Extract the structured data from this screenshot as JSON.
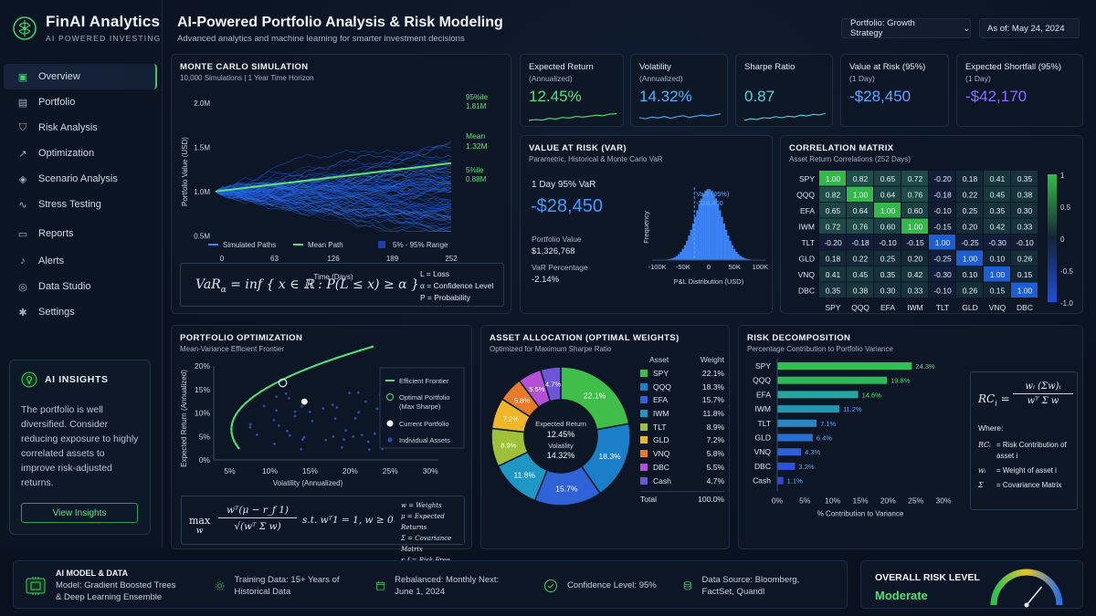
{
  "brand": {
    "title": "FinAI Analytics",
    "subtitle": "AI POWERED INVESTING"
  },
  "nav": [
    {
      "label": "Overview",
      "icon": "dashboard-icon",
      "active": true
    },
    {
      "label": "Portfolio",
      "icon": "briefcase-icon"
    },
    {
      "label": "Risk Analysis",
      "icon": "shield-icon"
    },
    {
      "label": "Optimization",
      "icon": "trend-icon"
    },
    {
      "label": "Scenario Analysis",
      "icon": "layers-icon"
    },
    {
      "label": "Stress Testing",
      "icon": "pulse-icon"
    },
    {
      "label": "Reports",
      "icon": "document-icon"
    },
    {
      "label": "Alerts",
      "icon": "bell-icon"
    },
    {
      "label": "Data Studio",
      "icon": "database-icon"
    },
    {
      "label": "Settings",
      "icon": "gear-icon"
    }
  ],
  "insights": {
    "title": "AI INSIGHTS",
    "text": "The portfolio is well diversified. Consider reducing exposure to highly correlated assets to improve risk-adjusted returns.",
    "button": "View Insights"
  },
  "header": {
    "title": "AI-Powered Portfolio Analysis & Risk Modeling",
    "subtitle": "Advanced analytics and machine learning for smarter investment decisions",
    "portfolio": "Portfolio: Growth Strategy",
    "asof": "As of: May 24, 2024"
  },
  "monte": {
    "title": "MONTE CARLO SIMULATION",
    "subtitle": "10,000 Simulations  |  1 Year Time Horizon",
    "ylabel": "Portfolio Value (USD)",
    "xlabel": "Time (Days)",
    "yticks": [
      "2.0M",
      "1.5M",
      "1.0M",
      "0.5M"
    ],
    "xticks": [
      "0",
      "63",
      "126",
      "189",
      "252"
    ],
    "p95_label": "95%ile",
    "p95_value": "1.81M",
    "mean_label": "Mean",
    "mean_value": "1.32M",
    "p5_label": "5%ile",
    "p5_value": "0.88M",
    "legend": [
      "Simulated Paths",
      "Mean Path",
      "5% - 95% Range"
    ],
    "formula": {
      "lhs": "VaR",
      "body": "= inf { x ∈ ℝ : P(L ≤ x) ≥ α }",
      "notes": [
        "L = Loss",
        "α = Confidence Level",
        "P = Probability"
      ]
    }
  },
  "kpis": [
    {
      "label": "Expected Return",
      "sub": "(Annualized)",
      "value": "12.45%",
      "color": "#4ee07a",
      "spark": [
        0.3,
        0.35,
        0.32,
        0.45,
        0.4,
        0.52,
        0.48,
        0.6,
        0.55,
        0.62,
        0.7,
        0.66,
        0.78,
        0.82
      ]
    },
    {
      "label": "Volatility",
      "sub": "(Annualized)",
      "value": "14.32%",
      "color": "#4db3ff",
      "spark": [
        0.5,
        0.42,
        0.55,
        0.48,
        0.6,
        0.45,
        0.58,
        0.66,
        0.52,
        0.62,
        0.7,
        0.64,
        0.72,
        0.8
      ]
    },
    {
      "label": "Sharpe Ratio",
      "sub": "",
      "value": "0.87",
      "color": "#4fd3e0",
      "spark": [
        0.3,
        0.42,
        0.36,
        0.5,
        0.46,
        0.58,
        0.5,
        0.62,
        0.56,
        0.7,
        0.64,
        0.76,
        0.72,
        0.84
      ]
    },
    {
      "label": "Value at Risk (95%)",
      "sub": "(1 Day)",
      "value": "-$28,450",
      "color": "#5aa9ff",
      "spark": []
    },
    {
      "label": "Expected Shortfall (95%)",
      "sub": "(1 Day)",
      "value": "-$42,170",
      "color": "#8b6cff",
      "spark": []
    }
  ],
  "var": {
    "title": "VALUE AT RISK (VAR)",
    "subtitle": "Parametric, Historical & Monte Carlo VaR",
    "label": "1 Day 95% VaR",
    "value": "-$28,450",
    "pv_label": "Portfolio Value",
    "pv": "$1,326,768",
    "pct_label": "VaR Percentage",
    "pct": "-2.14%",
    "marker": "VaR (95%)",
    "marker_value": "-$28,450",
    "ylabel": "Frequency",
    "xlabel": "P&L Distribution (USD)",
    "xticks": [
      "-100K",
      "-50K",
      "0",
      "50K",
      "100K"
    ]
  },
  "corr": {
    "title": "CORRELATION MATRIX",
    "subtitle": "Asset Return Correlations (252 Days)",
    "assets": [
      "SPY",
      "QQQ",
      "EFA",
      "IWM",
      "TLT",
      "GLD",
      "VNQ",
      "DBC"
    ],
    "matrix": [
      [
        1.0,
        0.82,
        0.65,
        0.72,
        -0.2,
        0.18,
        0.41,
        0.35
      ],
      [
        0.82,
        1.0,
        0.64,
        0.76,
        -0.18,
        0.22,
        0.45,
        0.38
      ],
      [
        0.65,
        0.64,
        1.0,
        0.6,
        -0.1,
        0.25,
        0.35,
        0.3
      ],
      [
        0.72,
        0.76,
        0.6,
        1.0,
        -0.15,
        0.2,
        0.42,
        0.33
      ],
      [
        -0.2,
        -0.18,
        -0.1,
        -0.15,
        1.0,
        -0.25,
        -0.3,
        -0.1
      ],
      [
        0.18,
        0.22,
        0.25,
        0.2,
        -0.25,
        1.0,
        0.1,
        0.26
      ],
      [
        0.41,
        0.45,
        0.35,
        0.42,
        -0.3,
        0.1,
        1.0,
        0.15
      ],
      [
        0.35,
        0.38,
        0.3,
        0.33,
        -0.1,
        0.26,
        0.15,
        1.0
      ]
    ],
    "scale": [
      "1",
      "0.5",
      "0",
      "-0.5",
      "-1.0"
    ]
  },
  "opt": {
    "title": "PORTFOLIO OPTIMIZATION",
    "subtitle": "Mean-Variance Efficient Frontier",
    "ylabel": "Expected Return (Annualized)",
    "xlabel": "Volatility (Annualized)",
    "yticks": [
      "20%",
      "15%",
      "10%",
      "5%",
      "0%"
    ],
    "xticks": [
      "5%",
      "10%",
      "15%",
      "20%",
      "25%",
      "30%"
    ],
    "legend": [
      "Efficient Frontier",
      "Optimal Portfolio",
      "(Max Sharpe)",
      "Current Portfolio",
      "Individual Assets"
    ],
    "formula": {
      "max": "max",
      "w": "w",
      "num": "wᵀ(μ − r_f 1)",
      "den": "√(wᵀ Σ w)",
      "st": "s.t.  wᵀ1 = 1,  w ≥ 0",
      "notes": [
        "w = Weights",
        "μ = Expected Returns",
        "Σ = Covariance Matrix",
        "r_f = Risk Free Rate"
      ]
    }
  },
  "alloc": {
    "title": "ASSET ALLOCATION (OPTIMAL WEIGHTS)",
    "subtitle": "Optimized for Maximum Sharpe Ratio",
    "center": [
      "Expected Return",
      "12.45%",
      "Volatility",
      "14.32%"
    ],
    "col_asset": "Asset",
    "col_weight": "Weight",
    "items": [
      {
        "name": "SPY",
        "w": 22.1,
        "label": "22.1%",
        "color": "#3fbf4a"
      },
      {
        "name": "QQQ",
        "w": 18.3,
        "label": "18.3%",
        "color": "#1a7ec8"
      },
      {
        "name": "EFA",
        "w": 15.7,
        "label": "15.7%",
        "color": "#2f62d6"
      },
      {
        "name": "IWM",
        "w": 11.8,
        "label": "11.8%",
        "color": "#1f97c4"
      },
      {
        "name": "TLT",
        "w": 8.9,
        "label": "8.9%",
        "color": "#9dc23a"
      },
      {
        "name": "GLD",
        "w": 7.2,
        "label": "7.2%",
        "color": "#f0b62a"
      },
      {
        "name": "VNQ",
        "w": 5.8,
        "label": "5.8%",
        "color": "#e87b2a"
      },
      {
        "name": "DBC",
        "w": 5.5,
        "label": "5.5%",
        "color": "#b44fd6"
      },
      {
        "name": "Cash",
        "w": 4.7,
        "label": "4.7%",
        "color": "#6d55d8"
      }
    ],
    "total_label": "Total",
    "total": "100.0%"
  },
  "rd": {
    "title": "RISK DECOMPOSITION",
    "subtitle": "Percentage Contribution to Portfolio Variance",
    "xlabel": "% Contribution to Variance",
    "xticks": [
      "0%",
      "5%",
      "10%",
      "15%",
      "20%",
      "25%",
      "30%"
    ],
    "items": [
      {
        "name": "SPY",
        "v": 24.3,
        "label": "24.3%"
      },
      {
        "name": "QQQ",
        "v": 19.8,
        "label": "19.8%"
      },
      {
        "name": "EFA",
        "v": 14.6,
        "label": "14.6%"
      },
      {
        "name": "IWM",
        "v": 11.2,
        "label": "11.2%"
      },
      {
        "name": "TLT",
        "v": 7.1,
        "label": "7.1%"
      },
      {
        "name": "GLD",
        "v": 6.4,
        "label": "6.4%"
      },
      {
        "name": "VNQ",
        "v": 4.3,
        "label": "4.3%"
      },
      {
        "name": "DBC",
        "v": 3.2,
        "label": "3.2%"
      },
      {
        "name": "Cash",
        "v": 1.1,
        "label": "1.1%"
      }
    ],
    "formula": {
      "lhs": "RC",
      "num": "wᵢ (Σw)ᵢ",
      "den": "wᵀ Σ w",
      "where": "Where:",
      "notes": [
        [
          "RCᵢ",
          "= Risk Contribution of asset i"
        ],
        [
          "wᵢ",
          "= Weight of asset i"
        ],
        [
          "Σ",
          "= Covariance Matrix"
        ]
      ]
    }
  },
  "footer": {
    "model_title": "AI MODEL & DATA",
    "model_text": "Model: Gradient Boosted Trees & Deep Learning Ensemble",
    "training": "Training Data: 15+ Years of Historical Data",
    "rebalanced": "Rebalanced: Monthly Next: June 1, 2024",
    "confidence": "Confidence Level: 95%",
    "source": "Data Source: Bloomberg, FactSet, Quandl"
  },
  "risk": {
    "label": "OVERALL RISK LEVEL",
    "value": "Moderate",
    "gauge": 0.72
  }
}
